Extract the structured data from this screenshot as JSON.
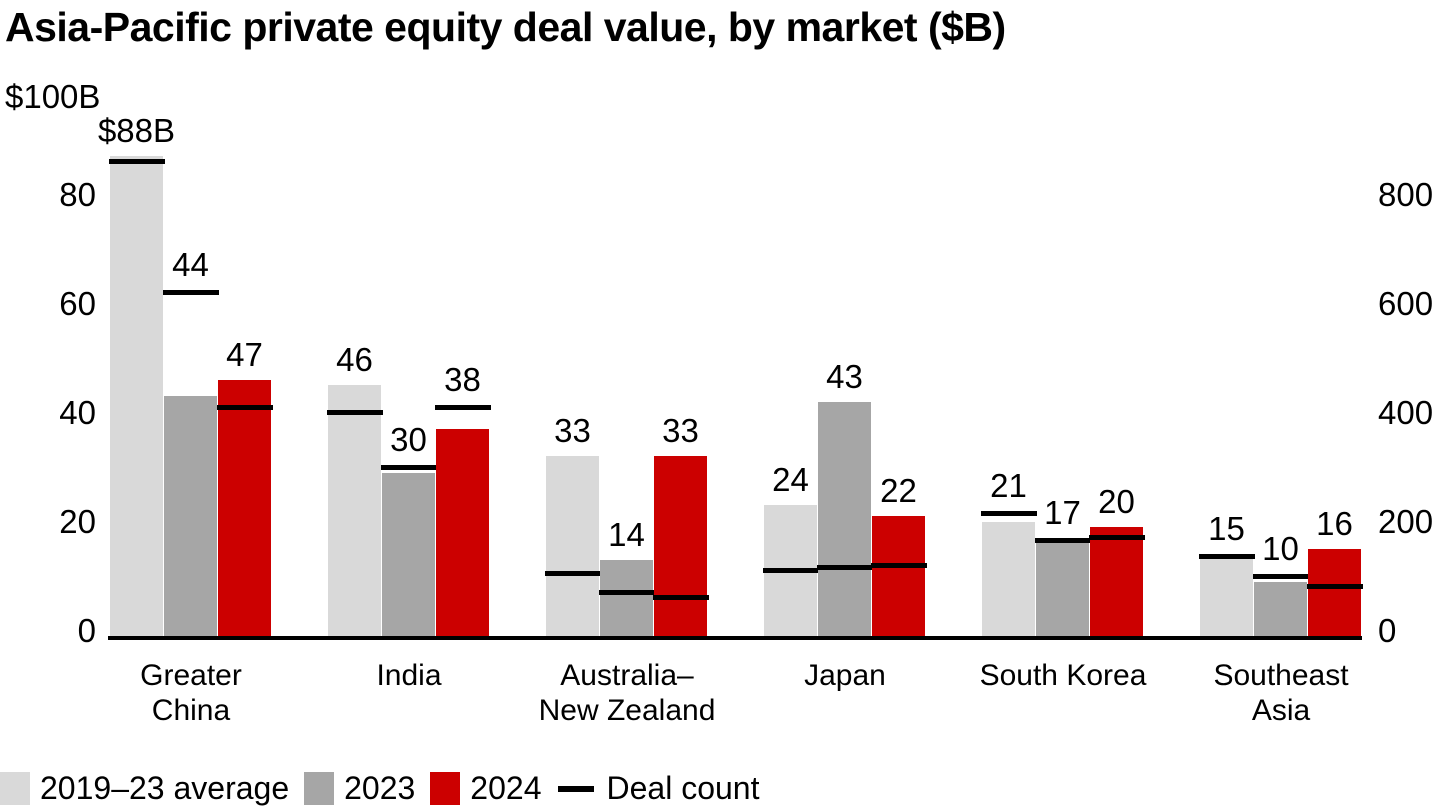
{
  "chart_data": {
    "type": "bar",
    "title": "Asia-Pacific private equity deal value, by market ($B)",
    "categories": [
      "Greater China",
      "India",
      "Australia–New Zealand",
      "Japan",
      "South Korea",
      "Southeast Asia"
    ],
    "category_lines": [
      [
        "Greater",
        "China"
      ],
      [
        "India"
      ],
      [
        "Australia–",
        "New Zealand"
      ],
      [
        "Japan"
      ],
      [
        "South Korea"
      ],
      [
        "Southeast",
        "Asia"
      ]
    ],
    "series": [
      {
        "name": "2019–23 average",
        "color": "#d9d9d9",
        "values": [
          88,
          46,
          33,
          24,
          21,
          15
        ],
        "value_labels": [
          "$88B",
          "46",
          "33",
          "24",
          "21",
          "15"
        ]
      },
      {
        "name": "2023",
        "color": "#a6a6a6",
        "values": [
          44,
          30,
          14,
          43,
          17,
          10
        ],
        "value_labels": [
          "44",
          "30",
          "14",
          "43",
          "17",
          "10"
        ]
      },
      {
        "name": "2024",
        "color": "#cc0000",
        "values": [
          47,
          38,
          33,
          22,
          20,
          16
        ],
        "value_labels": [
          "47",
          "38",
          "33",
          "22",
          "20",
          "16"
        ]
      }
    ],
    "deal_count_markers": {
      "label": "Deal count",
      "color": "#000000",
      "axis": "right",
      "series": [
        {
          "name": "2019–23 average",
          "values": [
            870,
            410,
            115,
            120,
            225,
            145
          ]
        },
        {
          "name": "2023",
          "values": [
            630,
            310,
            80,
            125,
            175,
            110
          ]
        },
        {
          "name": "2024",
          "values": [
            420,
            420,
            70,
            130,
            180,
            90
          ]
        }
      ]
    },
    "left_axis": {
      "top_label": "$100B",
      "ticks": [
        0,
        20,
        40,
        60,
        80
      ],
      "max": 100,
      "unit": "$B"
    },
    "right_axis": {
      "ticks": [
        0,
        200,
        400,
        600,
        800
      ],
      "max": 1000
    },
    "legend_position": "bottom-left",
    "grid": false
  }
}
